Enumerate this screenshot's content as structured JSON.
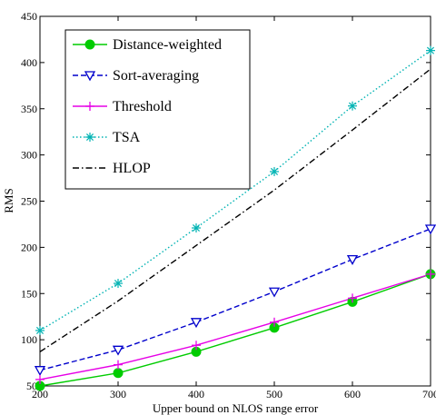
{
  "chart_data": {
    "type": "line",
    "title": "",
    "xlabel": "Upper bound on NLOS range error",
    "ylabel": "RMS",
    "x": [
      200,
      300,
      400,
      500,
      600,
      700
    ],
    "xlim": [
      200,
      700
    ],
    "ylim": [
      50,
      450
    ],
    "xticks": [
      200,
      300,
      400,
      500,
      600,
      700
    ],
    "yticks": [
      50,
      100,
      150,
      200,
      250,
      300,
      350,
      400,
      450
    ],
    "grid": false,
    "legend_position": "top-left",
    "series": [
      {
        "name": "Distance-weighted",
        "values": [
          50,
          64,
          87,
          113,
          141,
          171
        ],
        "color": "#00cc00",
        "style": "solid",
        "marker": "filled-circle"
      },
      {
        "name": "Sort-averaging",
        "values": [
          67,
          89,
          119,
          152,
          187,
          220
        ],
        "color": "#0000cc",
        "style": "dashed",
        "marker": "down-triangle"
      },
      {
        "name": "Threshold",
        "values": [
          57,
          73,
          94,
          119,
          145,
          171
        ],
        "color": "#e600e6",
        "style": "solid",
        "marker": "plus"
      },
      {
        "name": "TSA",
        "values": [
          110,
          161,
          221,
          282,
          353,
          413
        ],
        "color": "#00b3b3",
        "style": "dotted",
        "marker": "star"
      },
      {
        "name": "HLOP",
        "values": [
          87,
          142,
          202,
          262,
          327,
          393
        ],
        "color": "#000000",
        "style": "dashdot",
        "marker": "none"
      }
    ]
  }
}
